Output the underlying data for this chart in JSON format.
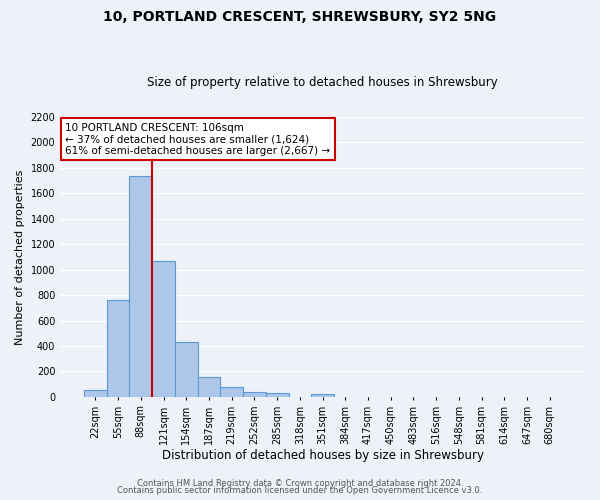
{
  "title1": "10, PORTLAND CRESCENT, SHREWSBURY, SY2 5NG",
  "title2": "Size of property relative to detached houses in Shrewsbury",
  "xlabel": "Distribution of detached houses by size in Shrewsbury",
  "ylabel": "Number of detached properties",
  "footer1": "Contains HM Land Registry data © Crown copyright and database right 2024.",
  "footer2": "Contains public sector information licensed under the Open Government Licence v3.0.",
  "bin_labels": [
    "22sqm",
    "55sqm",
    "88sqm",
    "121sqm",
    "154sqm",
    "187sqm",
    "219sqm",
    "252sqm",
    "285sqm",
    "318sqm",
    "351sqm",
    "384sqm",
    "417sqm",
    "450sqm",
    "483sqm",
    "516sqm",
    "548sqm",
    "581sqm",
    "614sqm",
    "647sqm",
    "680sqm"
  ],
  "bar_heights": [
    55,
    760,
    1740,
    1070,
    430,
    155,
    80,
    40,
    30,
    0,
    20,
    0,
    0,
    0,
    0,
    0,
    0,
    0,
    0,
    0,
    0
  ],
  "bar_color": "#aec6e8",
  "bar_edge_color": "#5b9bd5",
  "vline_color": "#cc0000",
  "vline_x_idx": 2.5,
  "annotation_title": "10 PORTLAND CRESCENT: 106sqm",
  "annotation_line1": "← 37% of detached houses are smaller (1,624)",
  "annotation_line2": "61% of semi-detached houses are larger (2,667) →",
  "annotation_box_color": "#ffffff",
  "annotation_box_edge_color": "#cc0000",
  "ylim": [
    0,
    2200
  ],
  "yticks": [
    0,
    200,
    400,
    600,
    800,
    1000,
    1200,
    1400,
    1600,
    1800,
    2000,
    2200
  ],
  "background_color": "#edf2f9",
  "grid_color": "#ffffff",
  "title1_fontsize": 10,
  "title2_fontsize": 8.5,
  "xlabel_fontsize": 8.5,
  "ylabel_fontsize": 8,
  "tick_fontsize": 7,
  "footer_fontsize": 6
}
